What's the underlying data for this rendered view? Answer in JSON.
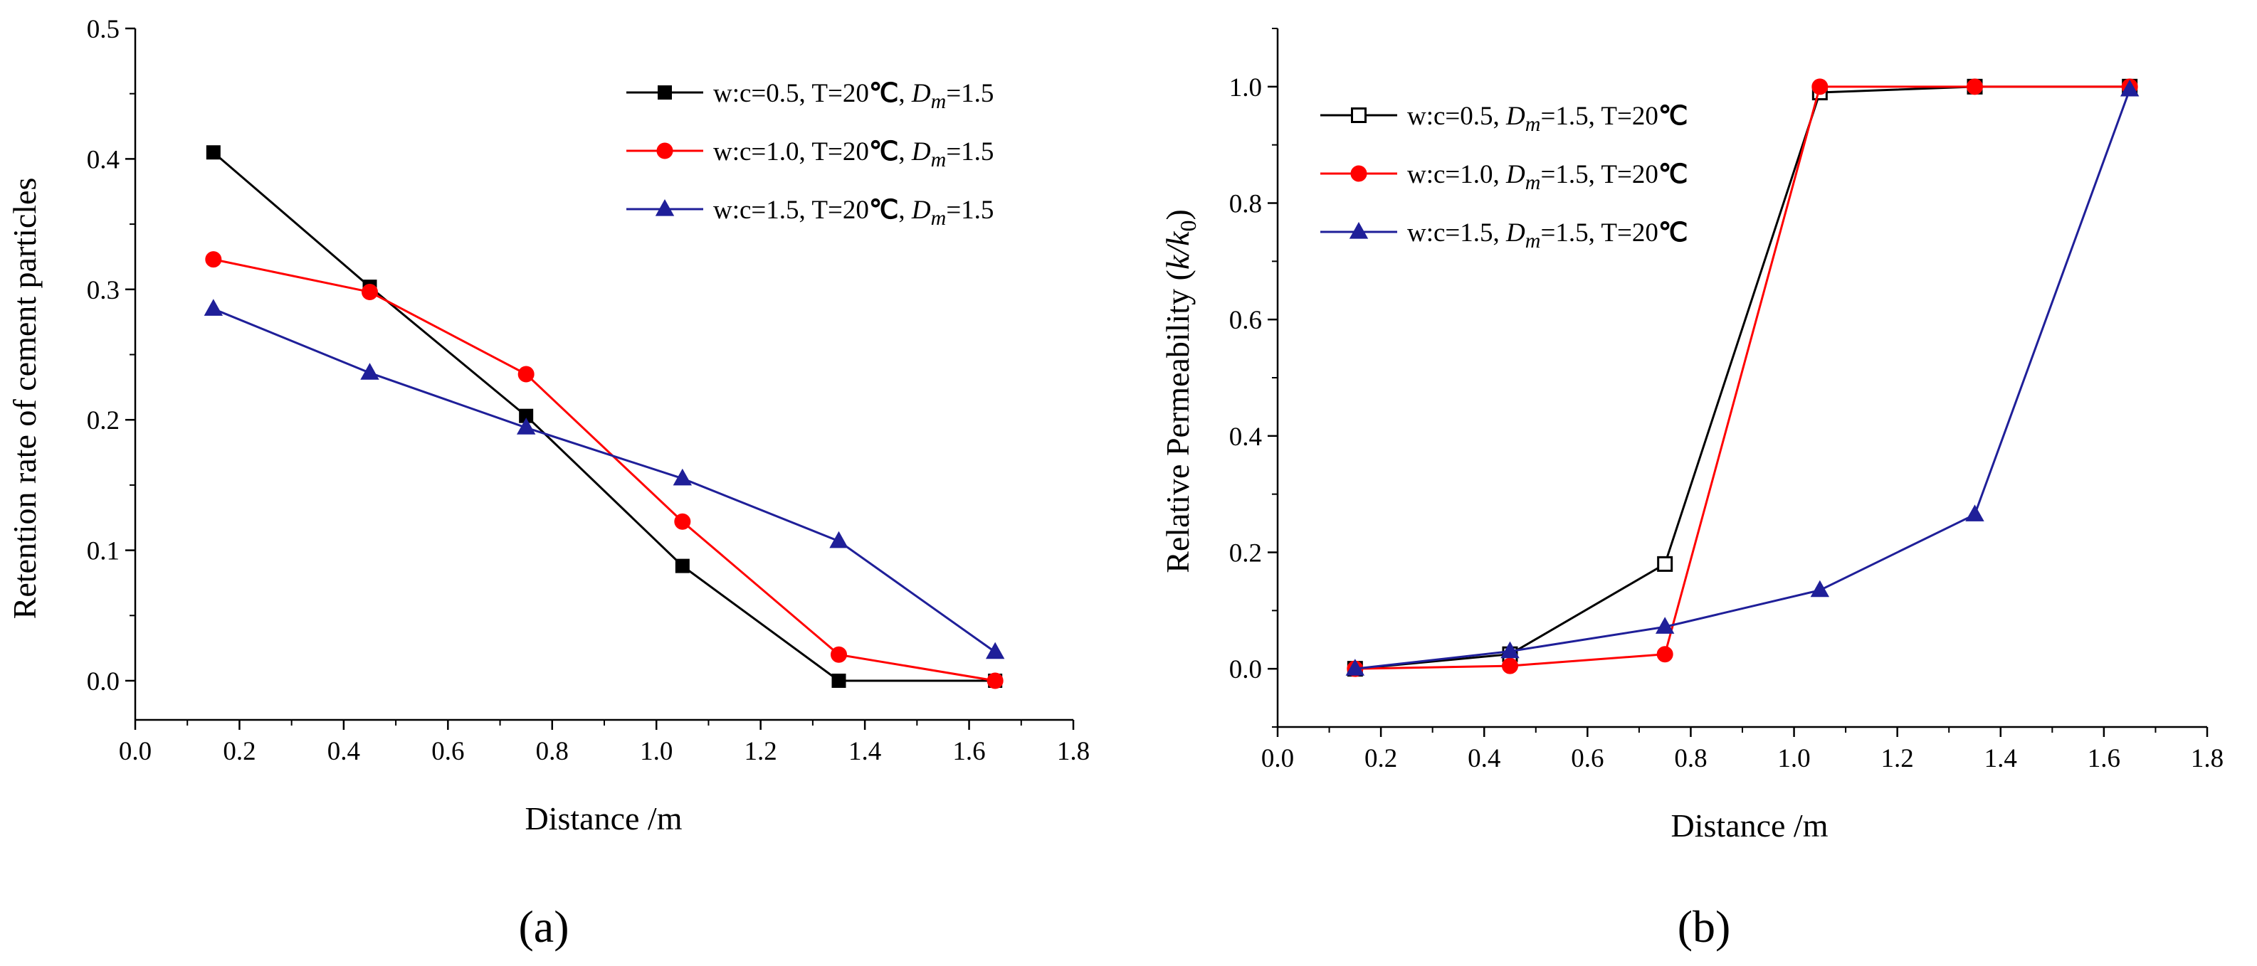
{
  "chart_data": [
    {
      "type": "line",
      "panel": "a",
      "panel_label": "(a)",
      "xlabel": "Distance /m",
      "ylabel": "Retention rate of cement particles",
      "xlim": [
        0.0,
        1.8
      ],
      "ylim": [
        -0.03,
        0.5
      ],
      "x_ticks": [
        0.0,
        0.2,
        0.4,
        0.6,
        0.8,
        1.0,
        1.2,
        1.4,
        1.6,
        1.8
      ],
      "x_tick_labels": [
        "0.0",
        "0.2",
        "0.4",
        "0.6",
        "0.8",
        "1.0",
        "1.2",
        "1.4",
        "1.6",
        "1.8"
      ],
      "y_ticks": [
        0.0,
        0.1,
        0.2,
        0.3,
        0.4,
        0.5
      ],
      "y_tick_labels": [
        "0.0",
        "0.1",
        "0.2",
        "0.3",
        "0.4",
        "0.5"
      ],
      "legend_position": "top-right",
      "series": [
        {
          "name": "w:c=0.5, T=20℃, Dm=1.5",
          "legend_prefix": "w:c=0.5, T=20",
          "legend_celsius": "℃",
          "legend_sep": ", ",
          "legend_d": "D",
          "legend_m": "m",
          "legend_tail": "=1.5",
          "color": "#000000",
          "marker": "square-filled",
          "x": [
            0.15,
            0.45,
            0.75,
            1.05,
            1.35,
            1.65
          ],
          "values": [
            0.405,
            0.302,
            0.203,
            0.088,
            0.0,
            0.0
          ]
        },
        {
          "name": "w:c=1.0, T=20℃, Dm=1.5",
          "legend_prefix": "w:c=1.0, T=20",
          "legend_celsius": "℃",
          "legend_sep": ", ",
          "legend_d": "D",
          "legend_m": "m",
          "legend_tail": "=1.5",
          "color": "#ff0000",
          "marker": "circle-filled",
          "x": [
            0.15,
            0.45,
            0.75,
            1.05,
            1.35,
            1.65
          ],
          "values": [
            0.323,
            0.298,
            0.235,
            0.122,
            0.02,
            0.0
          ]
        },
        {
          "name": "w:c=1.5, T=20℃, Dm=1.5",
          "legend_prefix": "w:c=1.5, T=20",
          "legend_celsius": "℃",
          "legend_sep": ", ",
          "legend_d": "D",
          "legend_m": "m",
          "legend_tail": "=1.5",
          "color": "#1f1f99",
          "marker": "triangle-filled",
          "x": [
            0.15,
            0.45,
            0.75,
            1.05,
            1.35,
            1.65
          ],
          "values": [
            0.285,
            0.236,
            0.194,
            0.155,
            0.107,
            0.022
          ]
        }
      ]
    },
    {
      "type": "line",
      "panel": "b",
      "panel_label": "(b)",
      "xlabel": "Distance /m",
      "ylabel": "Relative Permeability (k/k0)",
      "ylabel_parts": {
        "main": "Relative Permeability (",
        "k": "k",
        "slash": "/",
        "k0": "k",
        "sub": "0",
        "close": ")"
      },
      "xlim": [
        0.0,
        1.8
      ],
      "ylim": [
        -0.1,
        1.1
      ],
      "x_ticks": [
        0.0,
        0.2,
        0.4,
        0.6,
        0.8,
        1.0,
        1.2,
        1.4,
        1.6,
        1.8
      ],
      "x_tick_labels": [
        "0.0",
        "0.2",
        "0.4",
        "0.6",
        "0.8",
        "1.0",
        "1.2",
        "1.4",
        "1.6",
        "1.8"
      ],
      "y_ticks": [
        0.0,
        0.2,
        0.4,
        0.6,
        0.8,
        1.0
      ],
      "y_tick_labels": [
        "0.0",
        "0.2",
        "0.4",
        "0.6",
        "0.8",
        "1.0"
      ],
      "legend_position": "top-left",
      "series": [
        {
          "name": "w:c=0.5, Dm=1.5, T=20℃",
          "legend_prefix": "w:c=0.5, ",
          "legend_d": "D",
          "legend_m": "m",
          "legend_tail": "=1.5, T=20",
          "legend_celsius": "℃",
          "color": "#000000",
          "marker": "square-open",
          "x": [
            0.15,
            0.45,
            0.75,
            1.05,
            1.35,
            1.65
          ],
          "values": [
            0.0,
            0.025,
            0.18,
            0.99,
            1.0,
            1.0
          ]
        },
        {
          "name": "w:c=1.0, Dm=1.5, T=20℃",
          "legend_prefix": "w:c=1.0, ",
          "legend_d": "D",
          "legend_m": "m",
          "legend_tail": "=1.5, T=20",
          "legend_celsius": "℃",
          "color": "#ff0000",
          "marker": "circle-filled",
          "x": [
            0.15,
            0.45,
            0.75,
            1.05,
            1.35,
            1.65
          ],
          "values": [
            0.0,
            0.005,
            0.025,
            1.0,
            1.0,
            1.0
          ]
        },
        {
          "name": "w:c=1.5, Dm=1.5, T=20℃",
          "legend_prefix": "w:c=1.5, ",
          "legend_d": "D",
          "legend_m": "m",
          "legend_tail": "=1.5, T=20",
          "legend_celsius": "℃",
          "color": "#1f1f99",
          "marker": "triangle-filled",
          "x": [
            0.15,
            0.45,
            0.75,
            1.05,
            1.35,
            1.65
          ],
          "values": [
            0.0,
            0.03,
            0.072,
            0.135,
            0.265,
            0.995
          ]
        }
      ]
    }
  ]
}
